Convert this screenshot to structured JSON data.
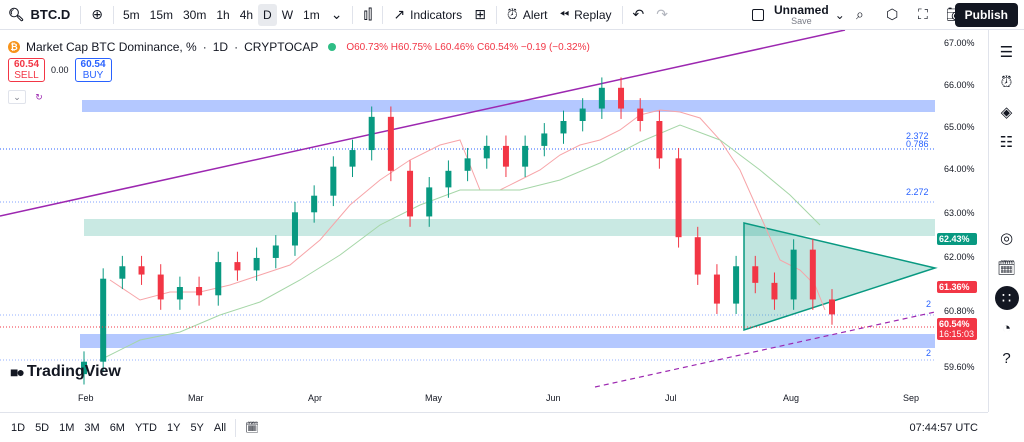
{
  "toolbar": {
    "symbol": "BTC.D",
    "intervals": [
      "5m",
      "15m",
      "30m",
      "1h",
      "4h",
      "D",
      "W",
      "1m"
    ],
    "active_interval": "D",
    "indicators_label": "Indicators",
    "alert_label": "Alert",
    "replay_label": "Replay",
    "layout_name": "Unnamed",
    "layout_status": "Save",
    "publish_label": "Publish"
  },
  "legend": {
    "title": "Market Cap BTC Dominance, %",
    "interval": "1D",
    "exchange": "CRYPTOCAP",
    "ohlc": "O60.73% H60.75% L60.46% C60.54% −0.19 (−0.32%)"
  },
  "trade": {
    "sell_price": "60.54",
    "sell_label": "SELL",
    "spread": "0.00",
    "buy_price": "60.54",
    "buy_label": "BUY"
  },
  "price_axis": {
    "labels": [
      "67.00%",
      "66.00%",
      "65.00%",
      "64.00%",
      "63.00%",
      "62.00%",
      "60.80%",
      "59.60%"
    ],
    "tag_green": "62.43%",
    "tag_red": "61.36%",
    "tag_current": "60.54%",
    "tag_timer": "16:15:03",
    "colors": {
      "green": "#089981",
      "red": "#f23645",
      "current": "#f23645"
    }
  },
  "fib_labels": [
    "2.372",
    "0.786",
    "2.272",
    "2",
    "2"
  ],
  "time_axis": [
    "Feb",
    "Mar",
    "Apr",
    "May",
    "Jun",
    "Jul",
    "Aug",
    "Sep"
  ],
  "branding": "TradingView",
  "bottombar": {
    "ranges": [
      "1D",
      "5D",
      "1M",
      "3M",
      "6M",
      "YTD",
      "1Y",
      "5Y",
      "All"
    ],
    "clock": "07:44:57 UTC"
  },
  "chart_data": {
    "type": "candlestick",
    "title": "Market Cap BTC Dominance, % · 1D · CRYPTOCAP",
    "ylim": [
      59.2,
      67.2
    ],
    "x": [
      "Feb",
      "Mar",
      "Apr",
      "May",
      "Jun",
      "Jul",
      "Aug",
      "Sep"
    ],
    "closes": [
      59.4,
      61.4,
      61.7,
      61.5,
      60.9,
      61.2,
      61.0,
      61.8,
      61.6,
      61.9,
      62.2,
      63.0,
      63.4,
      64.1,
      64.5,
      65.3,
      64.0,
      62.9,
      63.6,
      64.0,
      64.3,
      64.6,
      64.1,
      64.6,
      64.9,
      65.2,
      65.5,
      66.0,
      65.5,
      65.2,
      64.3,
      62.4,
      61.5,
      60.8,
      61.7,
      61.3,
      60.9,
      62.1,
      60.9,
      60.54
    ],
    "ranges": {
      "zones_blue": [
        [
          65.45,
          65.7
        ],
        [
          59.9,
          60.15
        ]
      ],
      "zone_green": [
        62.45,
        62.85
      ]
    }
  }
}
